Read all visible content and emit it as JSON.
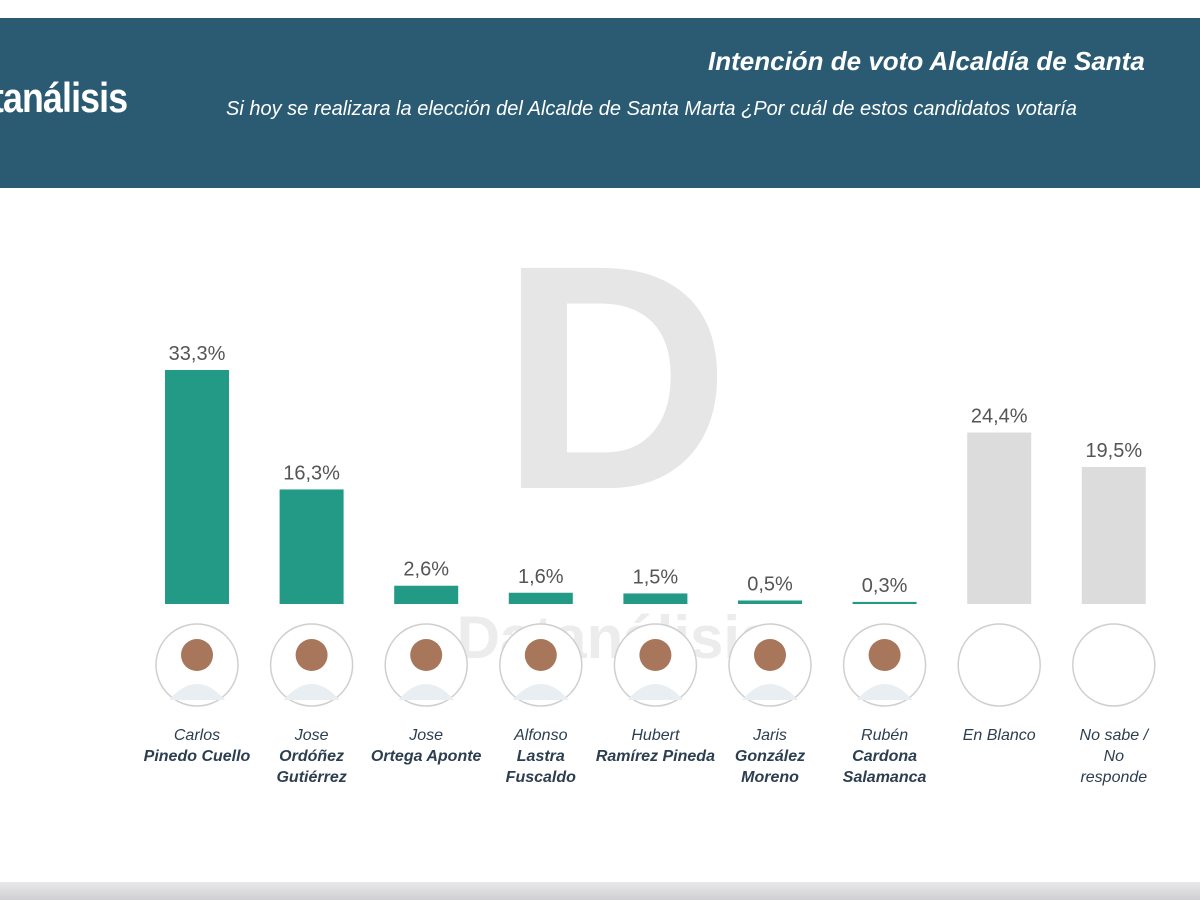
{
  "header": {
    "logo": "tanálisis",
    "title": "Intención de voto Alcaldía de Santa",
    "subtitle": "Si hoy se realizara la elección del Alcalde de Santa Marta ¿Por cuál de estos candidatos votaría"
  },
  "watermark": {
    "letter": "D",
    "text": "Datanálisis"
  },
  "colors": {
    "header": "#2a5b73",
    "candidate_bar": "#229a86",
    "other_bar": "#dcdcdc",
    "value_label": "#555555"
  },
  "chart_data": {
    "type": "bar",
    "title": "Intención de voto Alcaldía de Santa",
    "categories": [
      {
        "first": "Carlos",
        "last": "Pinedo Cuello",
        "kind": "candidate"
      },
      {
        "first": "Jose",
        "last": "Ordóñez Gutiérrez",
        "kind": "candidate"
      },
      {
        "first": "Jose",
        "last": "Ortega Aponte",
        "kind": "candidate"
      },
      {
        "first": "Alfonso",
        "last": "Lastra Fuscaldo",
        "kind": "candidate"
      },
      {
        "first": "Hubert",
        "last": "Ramírez Pineda",
        "kind": "candidate"
      },
      {
        "first": "Jaris",
        "last": "González Moreno",
        "kind": "candidate"
      },
      {
        "first": "Rubén",
        "last": "Cardona Salamanca",
        "kind": "candidate"
      },
      {
        "first": "En Blanco",
        "last": "",
        "kind": "other"
      },
      {
        "first": "No sabe / No responde",
        "last": "",
        "kind": "other"
      }
    ],
    "values": [
      33.3,
      16.3,
      2.6,
      1.6,
      1.5,
      0.5,
      0.3,
      24.4,
      19.5
    ],
    "value_labels": [
      "33,3%",
      "16,3%",
      "2,6%",
      "1,6%",
      "1,5%",
      "0,5%",
      "0,3%",
      "24,4%",
      "19,5%"
    ],
    "ylim": [
      0,
      35
    ],
    "grid": false,
    "legend": "none"
  }
}
